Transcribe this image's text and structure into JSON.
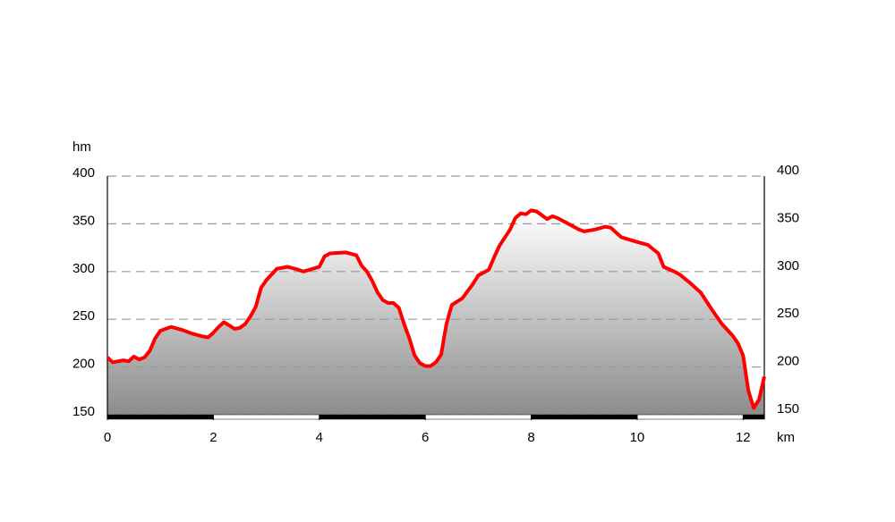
{
  "chart_data": {
    "type": "area",
    "x_label": "km",
    "y_label": "hm",
    "x": [
      0,
      0.1,
      0.3,
      0.4,
      0.5,
      0.6,
      0.7,
      0.8,
      0.9,
      1.0,
      1.2,
      1.4,
      1.6,
      1.8,
      1.9,
      2.0,
      2.1,
      2.2,
      2.4,
      2.5,
      2.6,
      2.7,
      2.8,
      2.9,
      3.0,
      3.2,
      3.4,
      3.6,
      3.7,
      4.0,
      4.1,
      4.2,
      4.5,
      4.7,
      4.8,
      4.9,
      5.0,
      5.1,
      5.2,
      5.3,
      5.4,
      5.5,
      5.6,
      5.7,
      5.8,
      5.9,
      6.0,
      6.1,
      6.2,
      6.3,
      6.4,
      6.5,
      6.7,
      6.9,
      7.0,
      7.2,
      7.3,
      7.4,
      7.6,
      7.7,
      7.8,
      7.9,
      8.0,
      8.1,
      8.2,
      8.3,
      8.4,
      8.5,
      8.7,
      8.9,
      9.0,
      9.2,
      9.4,
      9.5,
      9.7,
      10.0,
      10.2,
      10.4,
      10.5,
      10.7,
      10.8,
      11.0,
      11.2,
      11.4,
      11.6,
      11.8,
      11.9,
      12.0,
      12.1,
      12.2,
      12.3,
      12.4
    ],
    "values": [
      210,
      205,
      207,
      206,
      211,
      208,
      210,
      217,
      230,
      238,
      242,
      239,
      235,
      232,
      231,
      236,
      242,
      247,
      240,
      241,
      245,
      253,
      263,
      283,
      291,
      303,
      305,
      302,
      300,
      305,
      316,
      319,
      320,
      317,
      306,
      300,
      290,
      278,
      270,
      267,
      267,
      262,
      245,
      230,
      212,
      204,
      201,
      201,
      205,
      213,
      245,
      265,
      272,
      287,
      296,
      302,
      315,
      327,
      344,
      356,
      361,
      360,
      364,
      363,
      359,
      355,
      358,
      356,
      350,
      344,
      342,
      344,
      347,
      346,
      336,
      331,
      328,
      319,
      305,
      300,
      297,
      288,
      278,
      261,
      245,
      233,
      225,
      212,
      175,
      157,
      166,
      190
    ],
    "color": "#ff0000",
    "xlim": [
      0,
      12.4
    ],
    "xticks": [
      0,
      2,
      4,
      6,
      8,
      10,
      12
    ],
    "ylim": [
      150,
      400
    ],
    "yticks": [
      150,
      200,
      250,
      300,
      350,
      400
    ],
    "y2lim": [
      150,
      400
    ],
    "y2ticks": [
      150,
      200,
      250,
      300,
      350,
      400
    ],
    "grid": true
  }
}
